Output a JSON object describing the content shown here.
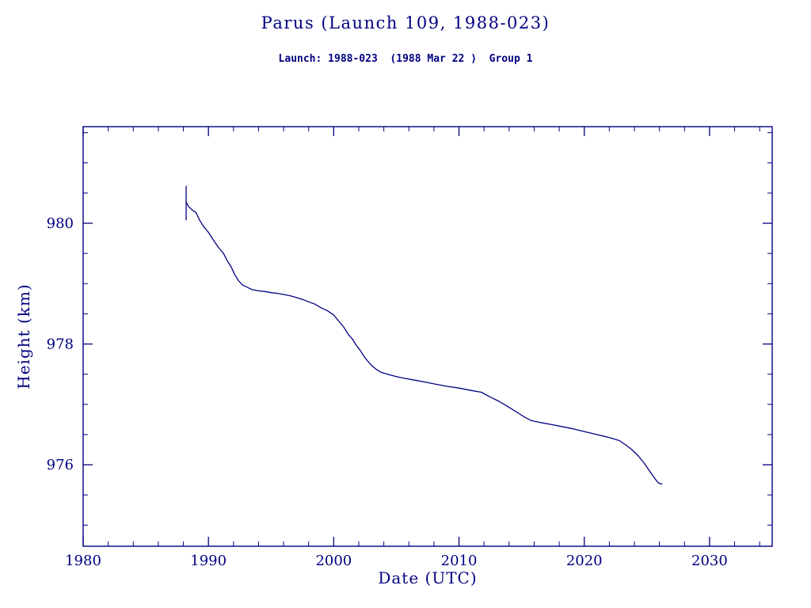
{
  "page": {
    "title": "Parus (Launch 109, 1988-023)",
    "subtitle": "Launch: 1988-023  (1988 Mar 22 )  Group 1"
  },
  "chart_data": {
    "type": "line",
    "title": "Parus (Launch 109, 1988-023)",
    "subtitle": "Launch: 1988-023  (1988 Mar 22 )  Group 1",
    "xlabel": "Date (UTC)",
    "ylabel": "Height (km)",
    "xlim": [
      1980,
      2035
    ],
    "ylim": [
      974.65,
      981.6
    ],
    "xticks": [
      1980,
      1990,
      2000,
      2010,
      2020,
      2030
    ],
    "yticks": [
      976,
      978,
      980
    ],
    "x_minor_step": 2,
    "y_minor_step": 0.5,
    "grid": "off",
    "legend": "none",
    "line_color": "#000080",
    "launch_marker": {
      "x": 1988.22,
      "y_from": 980.05,
      "y_to": 980.62
    },
    "series": [
      {
        "name": "orbital-height-km",
        "points": [
          [
            1988.22,
            980.35
          ],
          [
            1988.4,
            980.28
          ],
          [
            1988.7,
            980.22
          ],
          [
            1989.0,
            980.18
          ],
          [
            1989.3,
            980.05
          ],
          [
            1989.6,
            979.95
          ],
          [
            1990.0,
            979.85
          ],
          [
            1990.4,
            979.72
          ],
          [
            1990.8,
            979.6
          ],
          [
            1991.2,
            979.5
          ],
          [
            1991.5,
            979.38
          ],
          [
            1991.8,
            979.28
          ],
          [
            1992.1,
            979.15
          ],
          [
            1992.4,
            979.05
          ],
          [
            1992.7,
            978.98
          ],
          [
            1993.0,
            978.95
          ],
          [
            1993.5,
            978.9
          ],
          [
            1994.0,
            978.88
          ],
          [
            1994.5,
            978.87
          ],
          [
            1995.0,
            978.85
          ],
          [
            1995.5,
            978.84
          ],
          [
            1996.0,
            978.82
          ],
          [
            1996.5,
            978.8
          ],
          [
            1997.0,
            978.77
          ],
          [
            1997.5,
            978.74
          ],
          [
            1998.0,
            978.7
          ],
          [
            1998.5,
            978.66
          ],
          [
            1999.0,
            978.6
          ],
          [
            1999.5,
            978.55
          ],
          [
            2000.0,
            978.48
          ],
          [
            2000.4,
            978.38
          ],
          [
            2000.8,
            978.28
          ],
          [
            2001.2,
            978.15
          ],
          [
            2001.5,
            978.08
          ],
          [
            2001.8,
            977.98
          ],
          [
            2002.1,
            977.9
          ],
          [
            2002.4,
            977.8
          ],
          [
            2002.7,
            977.72
          ],
          [
            2003.0,
            977.65
          ],
          [
            2003.4,
            977.58
          ],
          [
            2003.8,
            977.53
          ],
          [
            2004.3,
            977.5
          ],
          [
            2005.0,
            977.46
          ],
          [
            2005.7,
            977.43
          ],
          [
            2006.5,
            977.4
          ],
          [
            2007.3,
            977.37
          ],
          [
            2008.0,
            977.34
          ],
          [
            2009.0,
            977.3
          ],
          [
            2010.0,
            977.27
          ],
          [
            2011.0,
            977.23
          ],
          [
            2011.8,
            977.2
          ],
          [
            2012.5,
            977.12
          ],
          [
            2013.2,
            977.05
          ],
          [
            2014.0,
            976.95
          ],
          [
            2014.7,
            976.86
          ],
          [
            2015.3,
            976.78
          ],
          [
            2015.8,
            976.73
          ],
          [
            2016.5,
            976.7
          ],
          [
            2017.3,
            976.67
          ],
          [
            2018.0,
            976.64
          ],
          [
            2019.0,
            976.6
          ],
          [
            2020.0,
            976.55
          ],
          [
            2021.0,
            976.5
          ],
          [
            2022.0,
            976.45
          ],
          [
            2022.8,
            976.4
          ],
          [
            2023.3,
            976.33
          ],
          [
            2023.8,
            976.25
          ],
          [
            2024.3,
            976.15
          ],
          [
            2024.8,
            976.02
          ],
          [
            2025.2,
            975.9
          ],
          [
            2025.6,
            975.78
          ],
          [
            2025.9,
            975.7
          ],
          [
            2026.2,
            975.68
          ]
        ]
      }
    ]
  }
}
